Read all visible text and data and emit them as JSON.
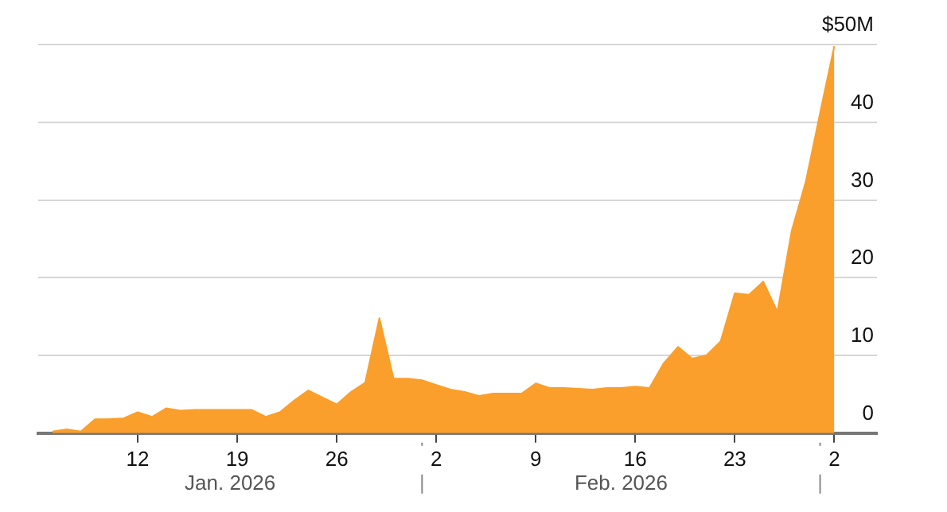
{
  "chart_data": {
    "type": "area",
    "x": [
      "2026-01-06",
      "2026-01-07",
      "2026-01-08",
      "2026-01-09",
      "2026-01-10",
      "2026-01-11",
      "2026-01-12",
      "2026-01-13",
      "2026-01-14",
      "2026-01-15",
      "2026-01-16",
      "2026-01-17",
      "2026-01-18",
      "2026-01-19",
      "2026-01-20",
      "2026-01-21",
      "2026-01-22",
      "2026-01-23",
      "2026-01-24",
      "2026-01-25",
      "2026-01-26",
      "2026-01-27",
      "2026-01-28",
      "2026-01-29",
      "2026-01-30",
      "2026-01-31",
      "2026-02-01",
      "2026-02-02",
      "2026-02-03",
      "2026-02-04",
      "2026-02-05",
      "2026-02-06",
      "2026-02-07",
      "2026-02-08",
      "2026-02-09",
      "2026-02-10",
      "2026-02-11",
      "2026-02-12",
      "2026-02-13",
      "2026-02-14",
      "2026-02-15",
      "2026-02-16",
      "2026-02-17",
      "2026-02-18",
      "2026-02-19",
      "2026-02-20",
      "2026-02-21",
      "2026-02-22",
      "2026-02-23",
      "2026-02-24",
      "2026-02-25",
      "2026-02-26",
      "2026-02-27",
      "2026-02-28",
      "2026-03-01",
      "2026-03-02"
    ],
    "series": [
      {
        "color": "#fa9f2c",
        "values": [
          0.2,
          0.5,
          0.2,
          1.8,
          1.8,
          1.9,
          2.7,
          2.1,
          3.2,
          2.9,
          3.0,
          3.0,
          3.0,
          3.0,
          3.0,
          2.1,
          2.7,
          4.2,
          5.5,
          4.6,
          3.7,
          5.3,
          6.5,
          14.8,
          7.0,
          7.0,
          6.8,
          6.2,
          5.6,
          5.3,
          4.8,
          5.1,
          5.1,
          5.1,
          6.4,
          5.8,
          5.8,
          5.7,
          5.6,
          5.8,
          5.8,
          6.0,
          5.8,
          9.0,
          11.1,
          9.6,
          10.0,
          11.8,
          18.0,
          17.8,
          19.5,
          15.6,
          26.0,
          32.4,
          41.2,
          49.8
        ]
      }
    ],
    "xlim": [
      "2026-01-05",
      "2026-03-05"
    ],
    "xticks": [
      {
        "value": "2026-01-12",
        "label": "12"
      },
      {
        "value": "2026-01-19",
        "label": "19"
      },
      {
        "value": "2026-01-26",
        "label": "26"
      },
      {
        "value": "2026-02-02",
        "label": "2"
      },
      {
        "value": "2026-02-09",
        "label": "9"
      },
      {
        "value": "2026-02-16",
        "label": "16"
      },
      {
        "value": "2026-02-23",
        "label": "23"
      },
      {
        "value": "2026-03-02",
        "label": "2"
      }
    ],
    "ylim": [
      0,
      50
    ],
    "yticks": [
      0,
      10,
      20,
      30,
      40,
      {
        "value": 50,
        "label": "$50M"
      }
    ],
    "annotations": [
      "Jan. 2026",
      "Feb. 2026"
    ],
    "grid": "y",
    "legend": false,
    "marker": "none"
  }
}
